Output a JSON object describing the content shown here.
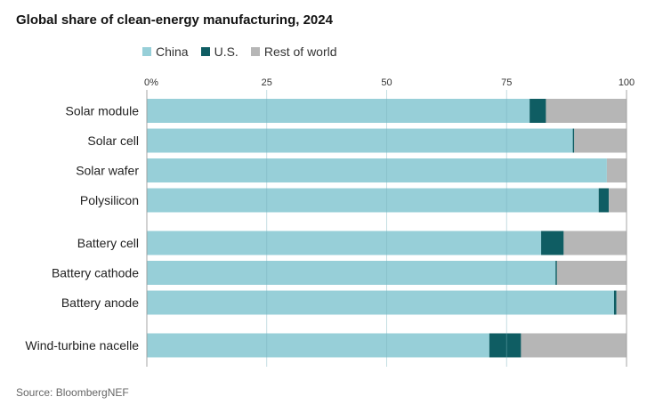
{
  "title": "Global share of clean-energy manufacturing, 2024",
  "source": "Source: BloombergNEF",
  "legend": [
    {
      "name": "China",
      "color": "#97cfd8"
    },
    {
      "name": "U.S.",
      "color": "#0f5d63"
    },
    {
      "name": "Rest of world",
      "color": "#b6b6b6"
    }
  ],
  "chart_data": {
    "type": "bar",
    "orientation": "horizontal",
    "stacked": true,
    "xlim": [
      0,
      100
    ],
    "xticks": [
      0,
      25,
      50,
      75,
      100
    ],
    "xtick_labels": [
      "0%",
      "25",
      "50",
      "75",
      "100"
    ],
    "grid": true,
    "legend_position": "top-left",
    "groups": [
      [
        "Solar module",
        "Solar cell",
        "Solar wafer",
        "Polysilicon"
      ],
      [
        "Battery cell",
        "Battery cathode",
        "Battery anode"
      ],
      [
        "Wind-turbine nacelle"
      ]
    ],
    "categories": [
      "Solar module",
      "Solar cell",
      "Solar wafer",
      "Polysilicon",
      "Battery cell",
      "Battery cathode",
      "Battery anode",
      "Wind-turbine nacelle"
    ],
    "series": [
      {
        "name": "China",
        "color": "#97cfd8",
        "values": [
          79.8,
          88.8,
          95.9,
          94.2,
          82.2,
          85.2,
          97.4,
          71.4
        ]
      },
      {
        "name": "U.S.",
        "color": "#0f5d63",
        "values": [
          3.4,
          0.3,
          0,
          2.1,
          4.7,
          0.3,
          0.5,
          6.6
        ]
      },
      {
        "name": "Rest of world",
        "color": "#b6b6b6",
        "values": [
          16.8,
          10.9,
          4.1,
          3.7,
          13.1,
          14.5,
          2.1,
          22.0
        ]
      }
    ]
  }
}
